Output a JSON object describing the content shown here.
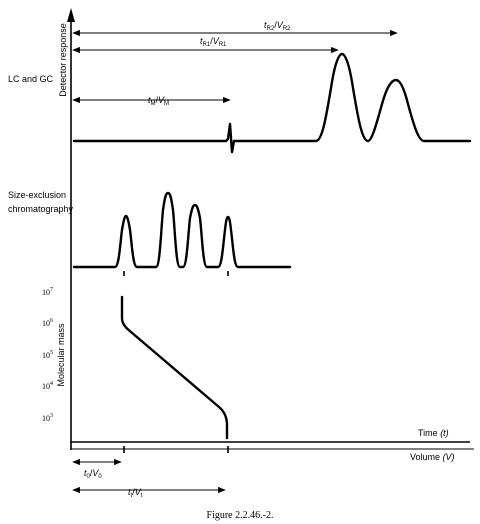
{
  "labels": {
    "y_axis_top": "Detector response",
    "y_axis_bottom": "Molecular mass",
    "lc_gc": "LC and GC",
    "sec_line1": "Size-exclusion",
    "sec_line2": "chromatography",
    "time": "Time",
    "time_unit": "(t)",
    "volume": "Volume",
    "volume_unit": "(V)",
    "caption": "Figure 2.2.46.-2."
  },
  "dimensions": {
    "tR2": {
      "t": "t",
      "t_sub": "R2",
      "sep": "/",
      "v": "V",
      "v_sub": "R2"
    },
    "tR1": {
      "t": "t",
      "t_sub": "R1",
      "sep": "/",
      "v": "V",
      "v_sub": "R1"
    },
    "tM": {
      "t": "t",
      "t_sub": "M",
      "sep": "/",
      "v": "V",
      "v_sub": "M"
    },
    "t0": {
      "t": "t",
      "t_sub": "0",
      "sep": "/",
      "v": "V",
      "v_sub": "0"
    },
    "tt": {
      "t": "t",
      "t_sub": "t",
      "sep": "/",
      "v": "V",
      "v_sub": "t"
    }
  },
  "mass_ticks": [
    {
      "base": "10",
      "exp": "7"
    },
    {
      "base": "10",
      "exp": "6"
    },
    {
      "base": "10",
      "exp": "5"
    },
    {
      "base": "10",
      "exp": "4"
    },
    {
      "base": "10",
      "exp": "3"
    }
  ]
}
